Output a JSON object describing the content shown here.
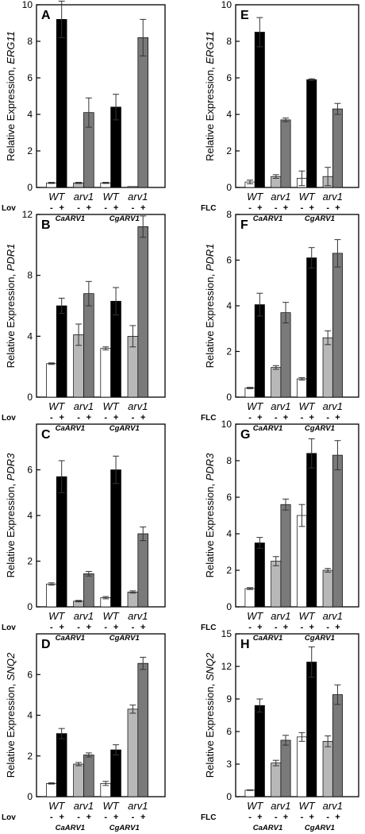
{
  "chart_data": [
    {
      "panel": "A",
      "type": "bar",
      "ylabel_prefix": "Relative Expression, ",
      "gene": "ERG11",
      "treatment": "Lov",
      "ylim": [
        0,
        10
      ],
      "yticks": [
        0,
        2,
        4,
        6,
        8,
        10
      ],
      "genotypes": [
        "WT",
        "arv1",
        "WT",
        "arv1"
      ],
      "strains": [
        "CaARV1",
        "CgARV1"
      ],
      "signs": [
        "-",
        "+",
        "-",
        "+",
        "-",
        "+",
        "-",
        "+"
      ],
      "bars": [
        {
          "value": 0.25,
          "error": 0.03,
          "fill": "#ffffff"
        },
        {
          "value": 9.2,
          "error": 1.0,
          "fill": "#000000"
        },
        {
          "value": 0.25,
          "error": 0.03,
          "fill": "#b8b8b8"
        },
        {
          "value": 4.1,
          "error": 0.8,
          "fill": "#7a7a7a"
        },
        {
          "value": 0.25,
          "error": 0.03,
          "fill": "#ffffff"
        },
        {
          "value": 4.4,
          "error": 0.7,
          "fill": "#000000"
        },
        {
          "value": 0.05,
          "error": 0.0,
          "fill": "#b8b8b8"
        },
        {
          "value": 8.2,
          "error": 1.0,
          "fill": "#7a7a7a"
        }
      ]
    },
    {
      "panel": "B",
      "type": "bar",
      "ylabel_prefix": "Relative Expression, ",
      "gene": "PDR1",
      "treatment": "Lov",
      "ylim": [
        0,
        12
      ],
      "yticks": [
        0,
        4,
        8,
        12
      ],
      "genotypes": [
        "WT",
        "arv1",
        "WT",
        "arv1"
      ],
      "strains": [
        "CaARV1",
        "CgARV1"
      ],
      "signs": [
        "-",
        "+",
        "-",
        "+",
        "-",
        "+",
        "-",
        "+"
      ],
      "bars": [
        {
          "value": 2.2,
          "error": 0.05,
          "fill": "#ffffff"
        },
        {
          "value": 6.0,
          "error": 0.5,
          "fill": "#000000"
        },
        {
          "value": 4.1,
          "error": 0.7,
          "fill": "#b8b8b8"
        },
        {
          "value": 6.8,
          "error": 0.8,
          "fill": "#7a7a7a"
        },
        {
          "value": 3.2,
          "error": 0.1,
          "fill": "#ffffff"
        },
        {
          "value": 6.3,
          "error": 0.9,
          "fill": "#000000"
        },
        {
          "value": 4.0,
          "error": 0.7,
          "fill": "#b8b8b8"
        },
        {
          "value": 11.2,
          "error": 0.7,
          "fill": "#7a7a7a"
        }
      ]
    },
    {
      "panel": "C",
      "type": "bar",
      "ylabel_prefix": "Relative Expression, ",
      "gene": "PDR3",
      "treatment": "Lov",
      "ylim": [
        0,
        8
      ],
      "yticks": [
        0,
        2,
        4,
        6
      ],
      "genotypes": [
        "WT",
        "arv1",
        "WT",
        "arv1"
      ],
      "strains": [
        "CaARV1",
        "CgARV1"
      ],
      "signs": [
        "-",
        "+",
        "-",
        "+",
        "-",
        "+",
        "-",
        "+"
      ],
      "bars": [
        {
          "value": 1.0,
          "error": 0.05,
          "fill": "#ffffff"
        },
        {
          "value": 5.7,
          "error": 0.7,
          "fill": "#000000"
        },
        {
          "value": 0.25,
          "error": 0.03,
          "fill": "#b8b8b8"
        },
        {
          "value": 1.45,
          "error": 0.1,
          "fill": "#7a7a7a"
        },
        {
          "value": 0.4,
          "error": 0.05,
          "fill": "#ffffff"
        },
        {
          "value": 6.0,
          "error": 0.6,
          "fill": "#000000"
        },
        {
          "value": 0.65,
          "error": 0.05,
          "fill": "#b8b8b8"
        },
        {
          "value": 3.2,
          "error": 0.3,
          "fill": "#7a7a7a"
        }
      ]
    },
    {
      "panel": "D",
      "type": "bar",
      "ylabel_prefix": "Relative Expression, ",
      "gene": "SNQ2",
      "treatment": "Lov",
      "ylim": [
        0,
        8
      ],
      "yticks": [
        0,
        2,
        4,
        6
      ],
      "genotypes": [
        "WT",
        "arv1",
        "WT",
        "arv1"
      ],
      "strains": [
        "CaARV1",
        "CgARV1"
      ],
      "signs": [
        "-",
        "+",
        "-",
        "+",
        "-",
        "+",
        "-",
        "+"
      ],
      "bars": [
        {
          "value": 0.65,
          "error": 0.03,
          "fill": "#ffffff"
        },
        {
          "value": 3.1,
          "error": 0.25,
          "fill": "#000000"
        },
        {
          "value": 1.6,
          "error": 0.08,
          "fill": "#b8b8b8"
        },
        {
          "value": 2.05,
          "error": 0.1,
          "fill": "#7a7a7a"
        },
        {
          "value": 0.65,
          "error": 0.1,
          "fill": "#ffffff"
        },
        {
          "value": 2.3,
          "error": 0.25,
          "fill": "#000000"
        },
        {
          "value": 4.3,
          "error": 0.2,
          "fill": "#b8b8b8"
        },
        {
          "value": 6.55,
          "error": 0.3,
          "fill": "#7a7a7a"
        }
      ]
    },
    {
      "panel": "E",
      "type": "bar",
      "ylabel_prefix": "Relative Expression, ",
      "gene": "ERG11",
      "treatment": "FLC",
      "ylim": [
        0,
        10
      ],
      "yticks": [
        0,
        2,
        4,
        6,
        8,
        10
      ],
      "genotypes": [
        "WT",
        "arv1",
        "WT",
        "arv1"
      ],
      "strains": [
        "CaARV1",
        "CgARV1"
      ],
      "signs": [
        "-",
        "+",
        "-",
        "+",
        "-",
        "+",
        "-",
        "+"
      ],
      "bars": [
        {
          "value": 0.3,
          "error": 0.1,
          "fill": "#ffffff"
        },
        {
          "value": 8.5,
          "error": 0.8,
          "fill": "#000000"
        },
        {
          "value": 0.6,
          "error": 0.1,
          "fill": "#b8b8b8"
        },
        {
          "value": 3.7,
          "error": 0.1,
          "fill": "#7a7a7a"
        },
        {
          "value": 0.5,
          "error": 0.4,
          "fill": "#ffffff"
        },
        {
          "value": 5.9,
          "error": 0.05,
          "fill": "#000000"
        },
        {
          "value": 0.6,
          "error": 0.5,
          "fill": "#b8b8b8"
        },
        {
          "value": 4.3,
          "error": 0.3,
          "fill": "#7a7a7a"
        }
      ]
    },
    {
      "panel": "F",
      "type": "bar",
      "ylabel_prefix": "Relative Expression, ",
      "gene": "PDR1",
      "treatment": "FLC",
      "ylim": [
        0,
        8
      ],
      "yticks": [
        0,
        2,
        4,
        6,
        8
      ],
      "genotypes": [
        "WT",
        "arv1",
        "WT",
        "arv1"
      ],
      "strains": [
        "CaARV1",
        "CgARV1"
      ],
      "signs": [
        "-",
        "+",
        "-",
        "+",
        "-",
        "+",
        "-",
        "+"
      ],
      "bars": [
        {
          "value": 0.4,
          "error": 0.03,
          "fill": "#ffffff"
        },
        {
          "value": 4.05,
          "error": 0.5,
          "fill": "#000000"
        },
        {
          "value": 1.3,
          "error": 0.08,
          "fill": "#b8b8b8"
        },
        {
          "value": 3.7,
          "error": 0.45,
          "fill": "#7a7a7a"
        },
        {
          "value": 0.8,
          "error": 0.05,
          "fill": "#ffffff"
        },
        {
          "value": 6.1,
          "error": 0.45,
          "fill": "#000000"
        },
        {
          "value": 2.6,
          "error": 0.3,
          "fill": "#b8b8b8"
        },
        {
          "value": 6.3,
          "error": 0.6,
          "fill": "#7a7a7a"
        }
      ]
    },
    {
      "panel": "G",
      "type": "bar",
      "ylabel_prefix": "Relative Expression, ",
      "gene": "PDR3",
      "treatment": "FLC",
      "ylim": [
        0,
        10
      ],
      "yticks": [
        0,
        2,
        4,
        6,
        8,
        10
      ],
      "genotypes": [
        "WT",
        "arv1",
        "WT",
        "arv1"
      ],
      "strains": [
        "CaARV1",
        "CgARV1"
      ],
      "signs": [
        "-",
        "+",
        "-",
        "+",
        "-",
        "+",
        "-",
        "+"
      ],
      "bars": [
        {
          "value": 1.0,
          "error": 0.05,
          "fill": "#ffffff"
        },
        {
          "value": 3.5,
          "error": 0.3,
          "fill": "#000000"
        },
        {
          "value": 2.5,
          "error": 0.25,
          "fill": "#b8b8b8"
        },
        {
          "value": 5.6,
          "error": 0.3,
          "fill": "#7a7a7a"
        },
        {
          "value": 5.0,
          "error": 0.6,
          "fill": "#ffffff"
        },
        {
          "value": 8.4,
          "error": 0.8,
          "fill": "#000000"
        },
        {
          "value": 2.0,
          "error": 0.1,
          "fill": "#b8b8b8"
        },
        {
          "value": 8.3,
          "error": 0.8,
          "fill": "#7a7a7a"
        }
      ]
    },
    {
      "panel": "H",
      "type": "bar",
      "ylabel_prefix": "Relative Expression, ",
      "gene": "SNQ2",
      "treatment": "FLC",
      "ylim": [
        0,
        15
      ],
      "yticks": [
        0,
        3,
        6,
        9,
        12,
        15
      ],
      "genotypes": [
        "WT",
        "arv1",
        "WT",
        "arv1"
      ],
      "strains": [
        "CaARV1",
        "CgARV1"
      ],
      "signs": [
        "-",
        "+",
        "-",
        "+",
        "-",
        "+",
        "-",
        "+"
      ],
      "bars": [
        {
          "value": 0.6,
          "error": 0.03,
          "fill": "#ffffff"
        },
        {
          "value": 8.4,
          "error": 0.6,
          "fill": "#000000"
        },
        {
          "value": 3.1,
          "error": 0.25,
          "fill": "#b8b8b8"
        },
        {
          "value": 5.2,
          "error": 0.45,
          "fill": "#7a7a7a"
        },
        {
          "value": 5.5,
          "error": 0.4,
          "fill": "#ffffff"
        },
        {
          "value": 12.4,
          "error": 1.4,
          "fill": "#000000"
        },
        {
          "value": 5.1,
          "error": 0.5,
          "fill": "#b8b8b8"
        },
        {
          "value": 9.4,
          "error": 0.9,
          "fill": "#7a7a7a"
        }
      ]
    }
  ]
}
